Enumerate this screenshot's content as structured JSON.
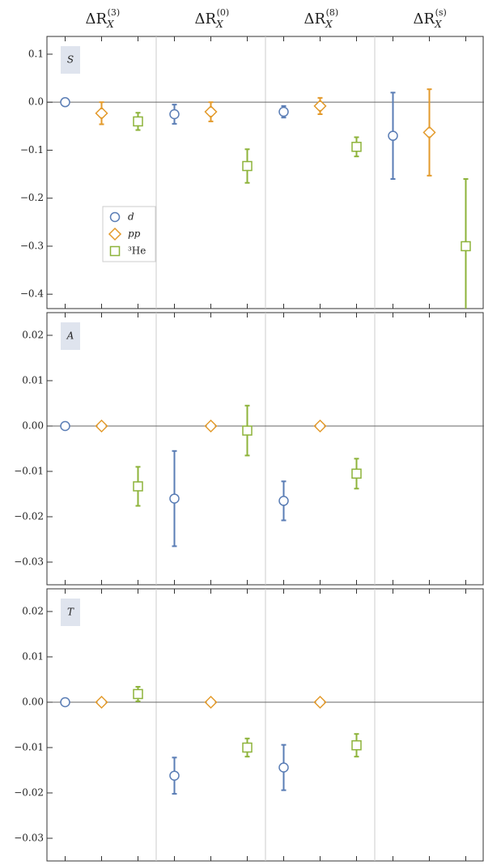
{
  "chart_data": [
    {
      "type": "errorbar",
      "title": "S",
      "categories": [
        {
          "base": "ΔR",
          "sub": "X",
          "sup": "(3)"
        },
        {
          "base": "ΔR",
          "sub": "X",
          "sup": "(0)"
        },
        {
          "base": "ΔR",
          "sub": "X",
          "sup": "(8)"
        },
        {
          "base": "ΔR",
          "sub": "X",
          "sup": "(s)"
        }
      ],
      "ylim": [
        -0.43,
        0.137
      ],
      "yticks": [
        0.1,
        {
          "value": 0,
          "label": "0.0"
        },
        {
          "value": -0.1,
          "label": "−0.1"
        },
        {
          "value": -0.2,
          "label": "−0.2"
        },
        {
          "value": -0.3,
          "label": "−0.3"
        },
        {
          "value": -0.4,
          "label": "−0.4"
        }
      ],
      "legend": "upper left",
      "series": [
        {
          "name": "d",
          "color": "#5a7db5",
          "marker": "circle",
          "values": [
            0,
            -0.025,
            -0.02,
            -0.07
          ],
          "errors": [
            null,
            0.02,
            0.012,
            0.09
          ]
        },
        {
          "name": "pp",
          "color": "#e39a2b",
          "marker": "diamond",
          "values": [
            -0.023,
            -0.02,
            -0.008,
            -0.063
          ],
          "errors": [
            0.023,
            0.02,
            0.017,
            0.09
          ]
        },
        {
          "name": "³He",
          "color": "#8db33a",
          "marker": "square",
          "values": [
            -0.04,
            -0.133,
            -0.093,
            -0.3
          ],
          "errors": [
            0.018,
            0.035,
            0.02,
            0.14
          ]
        }
      ]
    },
    {
      "type": "errorbar",
      "title": "A",
      "ylim": [
        -0.035,
        0.025
      ],
      "yticks": [
        0.02,
        0.01,
        {
          "value": 0,
          "label": "0.00"
        },
        {
          "value": -0.01,
          "label": "−0.01"
        },
        {
          "value": -0.02,
          "label": "−0.02"
        },
        {
          "value": -0.03,
          "label": "−0.03"
        }
      ],
      "series": [
        {
          "color": "#5a7db5",
          "marker": "circle",
          "values": [
            0,
            -0.016,
            -0.0165,
            null
          ],
          "errors": [
            null,
            0.0105,
            0.0043,
            null
          ]
        },
        {
          "color": "#e39a2b",
          "marker": "diamond",
          "values": [
            0,
            0,
            0,
            null
          ],
          "errors": [
            null,
            null,
            null,
            null
          ]
        },
        {
          "color": "#8db33a",
          "marker": "square",
          "values": [
            -0.0133,
            -0.001,
            -0.0105,
            null
          ],
          "errors": [
            0.0043,
            0.0055,
            0.0033,
            null
          ]
        }
      ]
    },
    {
      "type": "errorbar",
      "title": "T",
      "ylim": [
        -0.035,
        0.025
      ],
      "yticks": [
        0.02,
        0.01,
        {
          "value": 0,
          "label": "0.00"
        },
        {
          "value": -0.01,
          "label": "−0.01"
        },
        {
          "value": -0.02,
          "label": "−0.02"
        },
        {
          "value": -0.03,
          "label": "−0.03"
        }
      ],
      "series": [
        {
          "color": "#5a7db5",
          "marker": "circle",
          "values": [
            0,
            -0.0162,
            -0.0144,
            null
          ],
          "errors": [
            null,
            0.004,
            0.005,
            null
          ]
        },
        {
          "color": "#e39a2b",
          "marker": "diamond",
          "values": [
            0,
            0,
            0,
            null
          ],
          "errors": [
            null,
            null,
            null,
            null
          ]
        },
        {
          "color": "#8db33a",
          "marker": "square",
          "values": [
            0.0018,
            -0.01,
            -0.0095,
            null
          ],
          "errors": [
            0.0016,
            0.002,
            0.0025,
            null
          ]
        }
      ]
    }
  ]
}
